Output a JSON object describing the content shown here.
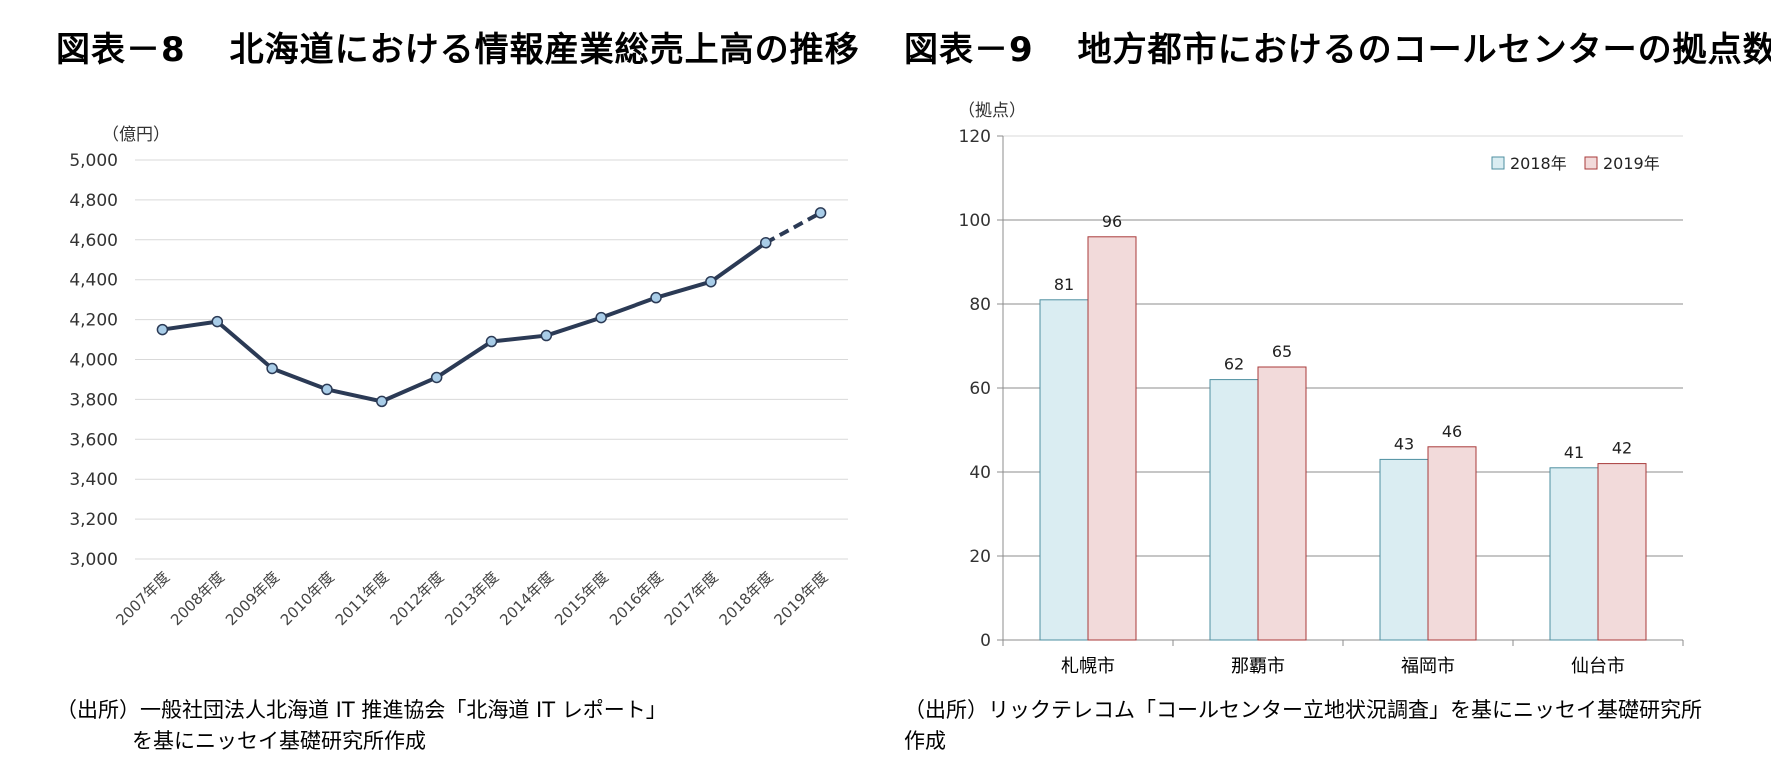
{
  "left": {
    "title_num": "図表－8",
    "title_text": "北海道における情報産業総売上高の推移",
    "source_line1": "（出所）一般社団法人北海道 IT 推進協会「北海道 IT レポート」",
    "source_line2": "を基にニッセイ基礎研究所作成"
  },
  "right": {
    "title_num": "図表－9",
    "title_text": "地方都市におけるのコールセンターの拠点数",
    "source_line1": "（出所）リックテレコム「コールセンター立地状況調査」を基にニッセイ基礎研究所",
    "source_line2": "作成"
  },
  "colors": {
    "line": "#2b3a55",
    "marker_fill": "#a9cde8",
    "bar_2018": "#daedf2",
    "bar_2018_edge": "#4e8fa0",
    "bar_2019": "#f2dada",
    "bar_2019_edge": "#a83a3a",
    "grid": "#d9d9d9",
    "grid_dark": "#8c8c8c"
  },
  "chart_data": [
    {
      "type": "line",
      "unit_label": "（億円）",
      "categories": [
        "2007年度",
        "2008年度",
        "2009年度",
        "2010年度",
        "2011年度",
        "2012年度",
        "2013年度",
        "2014年度",
        "2015年度",
        "2016年度",
        "2017年度",
        "2018年度",
        "2019年度"
      ],
      "series": [
        {
          "values": [
            4150,
            4190,
            3955,
            3850,
            3790,
            3910,
            4090,
            4120,
            4210,
            4310,
            4390,
            4585,
            4735
          ]
        }
      ],
      "estimate_from_index": 11,
      "ylim": [
        3000,
        5000
      ],
      "yticks": [
        "3,000",
        "3,200",
        "3,400",
        "3,600",
        "3,800",
        "4,000",
        "4,200",
        "4,400",
        "4,600",
        "4,800",
        "5,000"
      ],
      "grid": true
    },
    {
      "type": "bar",
      "unit_label": "（拠点）",
      "categories": [
        "札幌市",
        "那覇市",
        "福岡市",
        "仙台市"
      ],
      "series": [
        {
          "name": "2018年",
          "values": [
            81,
            62,
            43,
            41
          ]
        },
        {
          "name": "2019年",
          "values": [
            96,
            65,
            46,
            42
          ]
        }
      ],
      "ylim": [
        0,
        120
      ],
      "yticks": [
        "0",
        "20",
        "40",
        "60",
        "80",
        "100",
        "120"
      ],
      "legend_position": "top-right",
      "grid": true
    }
  ]
}
